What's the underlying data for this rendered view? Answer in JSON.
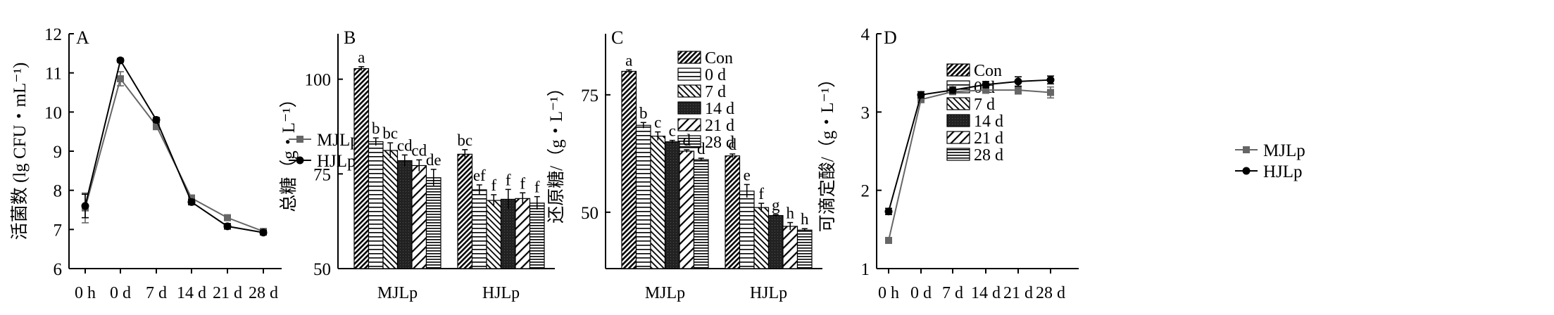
{
  "chart_data": [
    {
      "panel": "A",
      "type": "line",
      "ylabel": "活菌数 (lg CFU・mL⁻¹)",
      "ylim": [
        6,
        12
      ],
      "yticks": [
        6,
        7,
        8,
        9,
        10,
        11,
        12
      ],
      "categories": [
        "0 h",
        "0 d",
        "7 d",
        "14 d",
        "21 d",
        "28 d"
      ],
      "legend_position": "right",
      "series": [
        {
          "name": "MJLp",
          "values": [
            7.55,
            10.85,
            9.65,
            7.8,
            7.3,
            6.95
          ],
          "errors": [
            0.38,
            0.18,
            0.1,
            0.08,
            0.07,
            0.06
          ],
          "marker": "square",
          "color": "#666666"
        },
        {
          "name": "HJLp",
          "values": [
            7.6,
            11.32,
            9.8,
            7.7,
            7.08,
            6.92
          ],
          "errors": [
            0.3,
            0.05,
            0.06,
            0.07,
            0.07,
            0.06
          ],
          "marker": "circle",
          "color": "#000000"
        }
      ]
    },
    {
      "panel": "B",
      "type": "bar",
      "ylabel": "总糖（g・L⁻¹）",
      "ylim": [
        50,
        112
      ],
      "yticks": [
        50,
        75,
        100
      ],
      "categories": [
        "MJLp",
        "HJLp"
      ],
      "legend_position": "top-right",
      "series": [
        {
          "name": "Con",
          "values": [
            102.8,
            80.2
          ],
          "errors": [
            0.5,
            1.2
          ],
          "labels": [
            "a",
            "bc"
          ],
          "pattern": "diag-dense"
        },
        {
          "name": "0 d",
          "values": [
            83.5,
            70.8
          ],
          "errors": [
            1.0,
            1.3
          ],
          "labels": [
            "b",
            "ef"
          ],
          "pattern": "hlines"
        },
        {
          "name": "7 d",
          "values": [
            81.2,
            68.0
          ],
          "errors": [
            2.0,
            1.5
          ],
          "labels": [
            "bc",
            "f"
          ],
          "pattern": "diag-back"
        },
        {
          "name": "14 d",
          "values": [
            78.5,
            68.3
          ],
          "errors": [
            1.5,
            2.6
          ],
          "labels": [
            "cd",
            "f"
          ],
          "pattern": "solid-dark"
        },
        {
          "name": "21 d",
          "values": [
            77.2,
            68.5
          ],
          "errors": [
            1.5,
            1.5
          ],
          "labels": [
            "cd",
            "f"
          ],
          "pattern": "diag-wide"
        },
        {
          "name": "28 d",
          "values": [
            74.0,
            67.3
          ],
          "errors": [
            2.2,
            1.7
          ],
          "labels": [
            "de",
            "f"
          ],
          "pattern": "hlines-dense"
        }
      ]
    },
    {
      "panel": "C",
      "type": "bar",
      "ylabel": "还原糖/（g・L⁻¹）",
      "ylim": [
        38,
        88
      ],
      "yticks": [
        50,
        75
      ],
      "categories": [
        "MJLp",
        "HJLp"
      ],
      "legend_position": "top-right",
      "series": [
        {
          "name": "Con",
          "values": [
            80.0,
            62.0
          ],
          "errors": [
            0.3,
            0.4
          ],
          "labels": [
            "a",
            "d"
          ],
          "pattern": "diag-dense"
        },
        {
          "name": "0 d",
          "values": [
            68.5,
            54.5
          ],
          "errors": [
            0.6,
            1.4
          ],
          "labels": [
            "b",
            "e"
          ],
          "pattern": "hlines"
        },
        {
          "name": "7 d",
          "values": [
            66.2,
            51.0
          ],
          "errors": [
            0.9,
            0.9
          ],
          "labels": [
            "c",
            "f"
          ],
          "pattern": "diag-back"
        },
        {
          "name": "14 d",
          "values": [
            65.0,
            49.3
          ],
          "errors": [
            0.3,
            0.2
          ],
          "labels": [
            "c",
            "g"
          ],
          "pattern": "solid-dark"
        },
        {
          "name": "21 d",
          "values": [
            63.0,
            47.0
          ],
          "errors": [
            0.3,
            0.8
          ],
          "labels": [
            "d",
            "h"
          ],
          "pattern": "diag-wide"
        },
        {
          "name": "28 d",
          "values": [
            61.2,
            46.2
          ],
          "errors": [
            0.3,
            0.3
          ],
          "labels": [
            "d",
            "h"
          ],
          "pattern": "hlines-dense"
        }
      ]
    },
    {
      "panel": "D",
      "type": "line",
      "ylabel": "可滴定酸/（g・L⁻¹）",
      "ylim": [
        1,
        4
      ],
      "yticks": [
        1,
        2,
        3,
        4
      ],
      "categories": [
        "0 h",
        "0 d",
        "7 d",
        "14 d",
        "21 d",
        "28 d"
      ],
      "legend_position": "right",
      "series": [
        {
          "name": "MJLp",
          "values": [
            1.36,
            3.16,
            3.26,
            3.28,
            3.28,
            3.25
          ],
          "errors": [
            0.03,
            0.04,
            0.03,
            0.04,
            0.05,
            0.07
          ],
          "marker": "square",
          "color": "#666666"
        },
        {
          "name": "HJLp",
          "values": [
            1.73,
            3.22,
            3.28,
            3.35,
            3.39,
            3.41
          ],
          "errors": [
            0.04,
            0.04,
            0.04,
            0.04,
            0.06,
            0.05
          ],
          "marker": "circle",
          "color": "#000000"
        }
      ]
    }
  ]
}
